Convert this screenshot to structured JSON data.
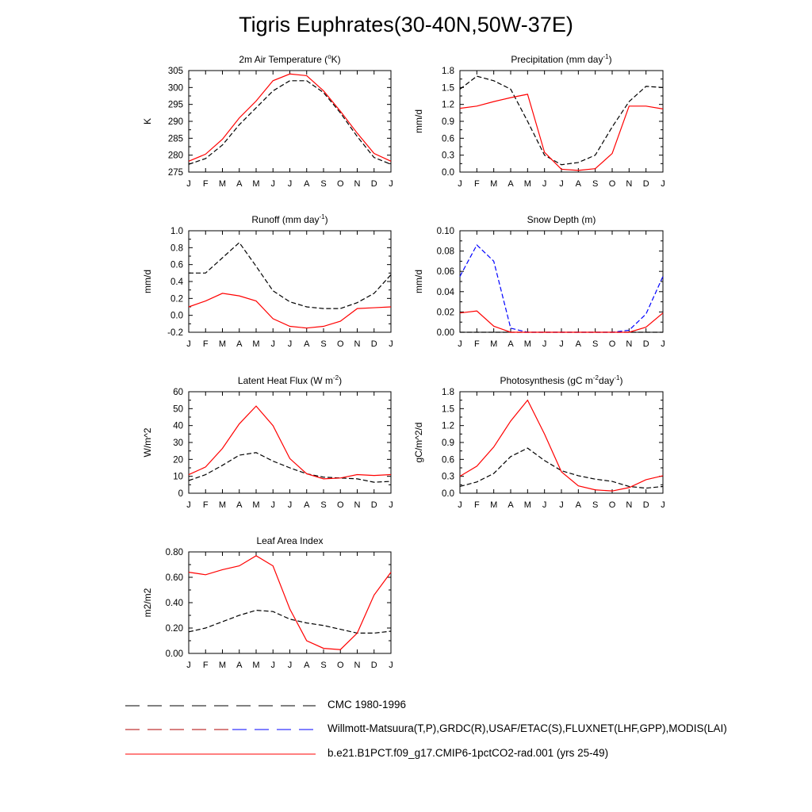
{
  "title": "Tigris Euphrates(30-40N,50W-37E)",
  "colors": {
    "cmc": "#000000",
    "obs": "#000000",
    "obs_snow": "#0000ff",
    "model": "#ff0000"
  },
  "legend": [
    {
      "label": "CMC 1980-1996",
      "style": "dashed",
      "color": "#000000"
    },
    {
      "label": "Willmott-Matsuura(T,P),GRDC(R),USAF/ETAC(S),FLUXNET(LHF,GPP),MODIS(LAI)",
      "style": "dashed",
      "color": "#b00000",
      "alt_color": "#0000ff"
    },
    {
      "label": "b.e21.B1PCT.f09_g17.CMIP6-1pctCO2-rad.001 (yrs 25-49)",
      "style": "solid",
      "color": "#ff0000"
    }
  ],
  "chart_data": [
    {
      "type": "line",
      "title": "2m Air Temperature (",
      "title_sup": "o",
      "title_end": "K)",
      "ylabel": "K",
      "categories": [
        "J",
        "F",
        "M",
        "A",
        "M",
        "J",
        "J",
        "A",
        "S",
        "O",
        "N",
        "D",
        "J"
      ],
      "ylim": [
        275,
        305
      ],
      "yticks": [
        "275",
        "280",
        "285",
        "290",
        "295",
        "300",
        "305"
      ],
      "series": [
        {
          "values": [
            277.3,
            279,
            283,
            289,
            294,
            299,
            302,
            302,
            298.5,
            292.5,
            285.5,
            279.3,
            277.3
          ],
          "color": "#000000",
          "dash": true
        },
        {
          "values": [
            278.2,
            280.3,
            284.7,
            291,
            296,
            302,
            304,
            303.5,
            299,
            293,
            286.5,
            280.5,
            278.2
          ],
          "color": "#ff0000",
          "dash": false
        }
      ]
    },
    {
      "type": "line",
      "title": "Precipitation (mm day",
      "title_sup": "-1",
      "title_end": ")",
      "ylabel": "mm/d",
      "categories": [
        "J",
        "F",
        "M",
        "A",
        "M",
        "J",
        "J",
        "A",
        "S",
        "O",
        "N",
        "D",
        "J"
      ],
      "ylim": [
        0,
        1.8
      ],
      "yticks": [
        "0.0",
        "0.3",
        "0.6",
        "0.9",
        "1.2",
        "1.5",
        "1.8"
      ],
      "series": [
        {
          "values": [
            1.47,
            1.7,
            1.62,
            1.47,
            0.9,
            0.3,
            0.13,
            0.17,
            0.3,
            0.8,
            1.25,
            1.52,
            1.5
          ],
          "color": "#000000",
          "dash": true
        },
        {
          "values": [
            1.13,
            1.17,
            1.25,
            1.32,
            1.38,
            0.35,
            0.05,
            0.03,
            0.06,
            0.33,
            1.17,
            1.17,
            1.12
          ],
          "color": "#ff0000",
          "dash": false
        }
      ]
    },
    {
      "type": "line",
      "title": "Runoff (mm day",
      "title_sup": "-1",
      "title_end": ")",
      "ylabel": "mm/d",
      "categories": [
        "J",
        "F",
        "M",
        "A",
        "M",
        "J",
        "J",
        "A",
        "S",
        "O",
        "N",
        "D",
        "J"
      ],
      "ylim": [
        -0.2,
        1.0
      ],
      "yticks": [
        "-0.2",
        "0.0",
        "0.2",
        "0.4",
        "0.6",
        "0.8",
        "1.0"
      ],
      "series": [
        {
          "values": [
            0.5,
            0.5,
            0.68,
            0.86,
            0.58,
            0.29,
            0.16,
            0.1,
            0.08,
            0.08,
            0.15,
            0.26,
            0.48
          ],
          "color": "#000000",
          "dash": true
        },
        {
          "values": [
            0.1,
            0.17,
            0.26,
            0.23,
            0.17,
            -0.04,
            -0.13,
            -0.15,
            -0.13,
            -0.07,
            0.08,
            0.09,
            0.1
          ],
          "color": "#ff0000",
          "dash": false
        }
      ]
    },
    {
      "type": "line",
      "title": "Snow Depth (m)",
      "title_sup": "",
      "title_end": "",
      "ylabel": "mm/d",
      "categories": [
        "J",
        "F",
        "M",
        "A",
        "M",
        "J",
        "J",
        "A",
        "S",
        "O",
        "N",
        "D",
        "J"
      ],
      "ylim": [
        0,
        0.1
      ],
      "yticks": [
        "0.00",
        "0.02",
        "0.04",
        "0.06",
        "0.08",
        "0.10"
      ],
      "series": [
        {
          "values": [
            0,
            0,
            0,
            0,
            0,
            0,
            0,
            0,
            0,
            0,
            0,
            0,
            0
          ],
          "color": "#000000",
          "dash": true
        },
        {
          "values": [
            0.055,
            0.086,
            0.07,
            0.004,
            0,
            0,
            0,
            0,
            0,
            0,
            0.002,
            0.018,
            0.055
          ],
          "color": "#0000ff",
          "dash": true
        },
        {
          "values": [
            0.019,
            0.021,
            0.006,
            0,
            0,
            0,
            0,
            0,
            0,
            0,
            0,
            0.005,
            0.019
          ],
          "color": "#ff0000",
          "dash": false
        }
      ]
    },
    {
      "type": "line",
      "title": "Latent Heat Flux (W m",
      "title_sup": "-2",
      "title_end": ")",
      "ylabel": "W/m^2",
      "categories": [
        "J",
        "F",
        "M",
        "A",
        "M",
        "J",
        "J",
        "A",
        "S",
        "O",
        "N",
        "D",
        "J"
      ],
      "ylim": [
        0,
        60
      ],
      "yticks": [
        "0",
        "10",
        "20",
        "30",
        "40",
        "50",
        "60"
      ],
      "series": [
        {
          "values": [
            7.5,
            11,
            16.5,
            22.5,
            24,
            19,
            15,
            11.5,
            9.5,
            9,
            8.5,
            6.5,
            7
          ],
          "color": "#000000",
          "dash": true
        },
        {
          "values": [
            11,
            15.5,
            26.5,
            41,
            51.5,
            40,
            20.5,
            11.5,
            8.5,
            9,
            11,
            10.5,
            11
          ],
          "color": "#ff0000",
          "dash": false
        }
      ]
    },
    {
      "type": "line",
      "title": "Photosynthesis (gC m",
      "title_sup": "-2",
      "title_mid": "day",
      "title_sup2": "-1",
      "title_end": ")",
      "ylabel": "gC/m^2/d",
      "categories": [
        "J",
        "F",
        "M",
        "A",
        "M",
        "J",
        "J",
        "A",
        "S",
        "O",
        "N",
        "D",
        "J"
      ],
      "ylim": [
        0,
        1.8
      ],
      "yticks": [
        "0.0",
        "0.3",
        "0.6",
        "0.9",
        "1.2",
        "1.5",
        "1.8"
      ],
      "series": [
        {
          "values": [
            0.12,
            0.2,
            0.35,
            0.65,
            0.8,
            0.58,
            0.4,
            0.31,
            0.25,
            0.21,
            0.12,
            0.09,
            0.12
          ],
          "color": "#000000",
          "dash": true
        },
        {
          "values": [
            0.3,
            0.48,
            0.82,
            1.28,
            1.65,
            1.05,
            0.38,
            0.13,
            0.06,
            0.04,
            0.1,
            0.24,
            0.31
          ],
          "color": "#ff0000",
          "dash": false
        }
      ]
    },
    {
      "type": "line",
      "title": "Leaf Area Index",
      "title_sup": "",
      "title_end": "",
      "ylabel": "m2/m2",
      "categories": [
        "J",
        "F",
        "M",
        "A",
        "M",
        "J",
        "J",
        "A",
        "S",
        "O",
        "N",
        "D",
        "J"
      ],
      "ylim": [
        0,
        0.8
      ],
      "yticks": [
        "0.00",
        "0.20",
        "0.40",
        "0.60",
        "0.80"
      ],
      "series": [
        {
          "values": [
            0.17,
            0.2,
            0.25,
            0.3,
            0.34,
            0.33,
            0.27,
            0.24,
            0.22,
            0.19,
            0.16,
            0.16,
            0.175
          ],
          "color": "#000000",
          "dash": true
        },
        {
          "values": [
            0.64,
            0.62,
            0.66,
            0.69,
            0.77,
            0.69,
            0.35,
            0.1,
            0.04,
            0.03,
            0.16,
            0.46,
            0.64
          ],
          "color": "#ff0000",
          "dash": false
        }
      ]
    }
  ]
}
